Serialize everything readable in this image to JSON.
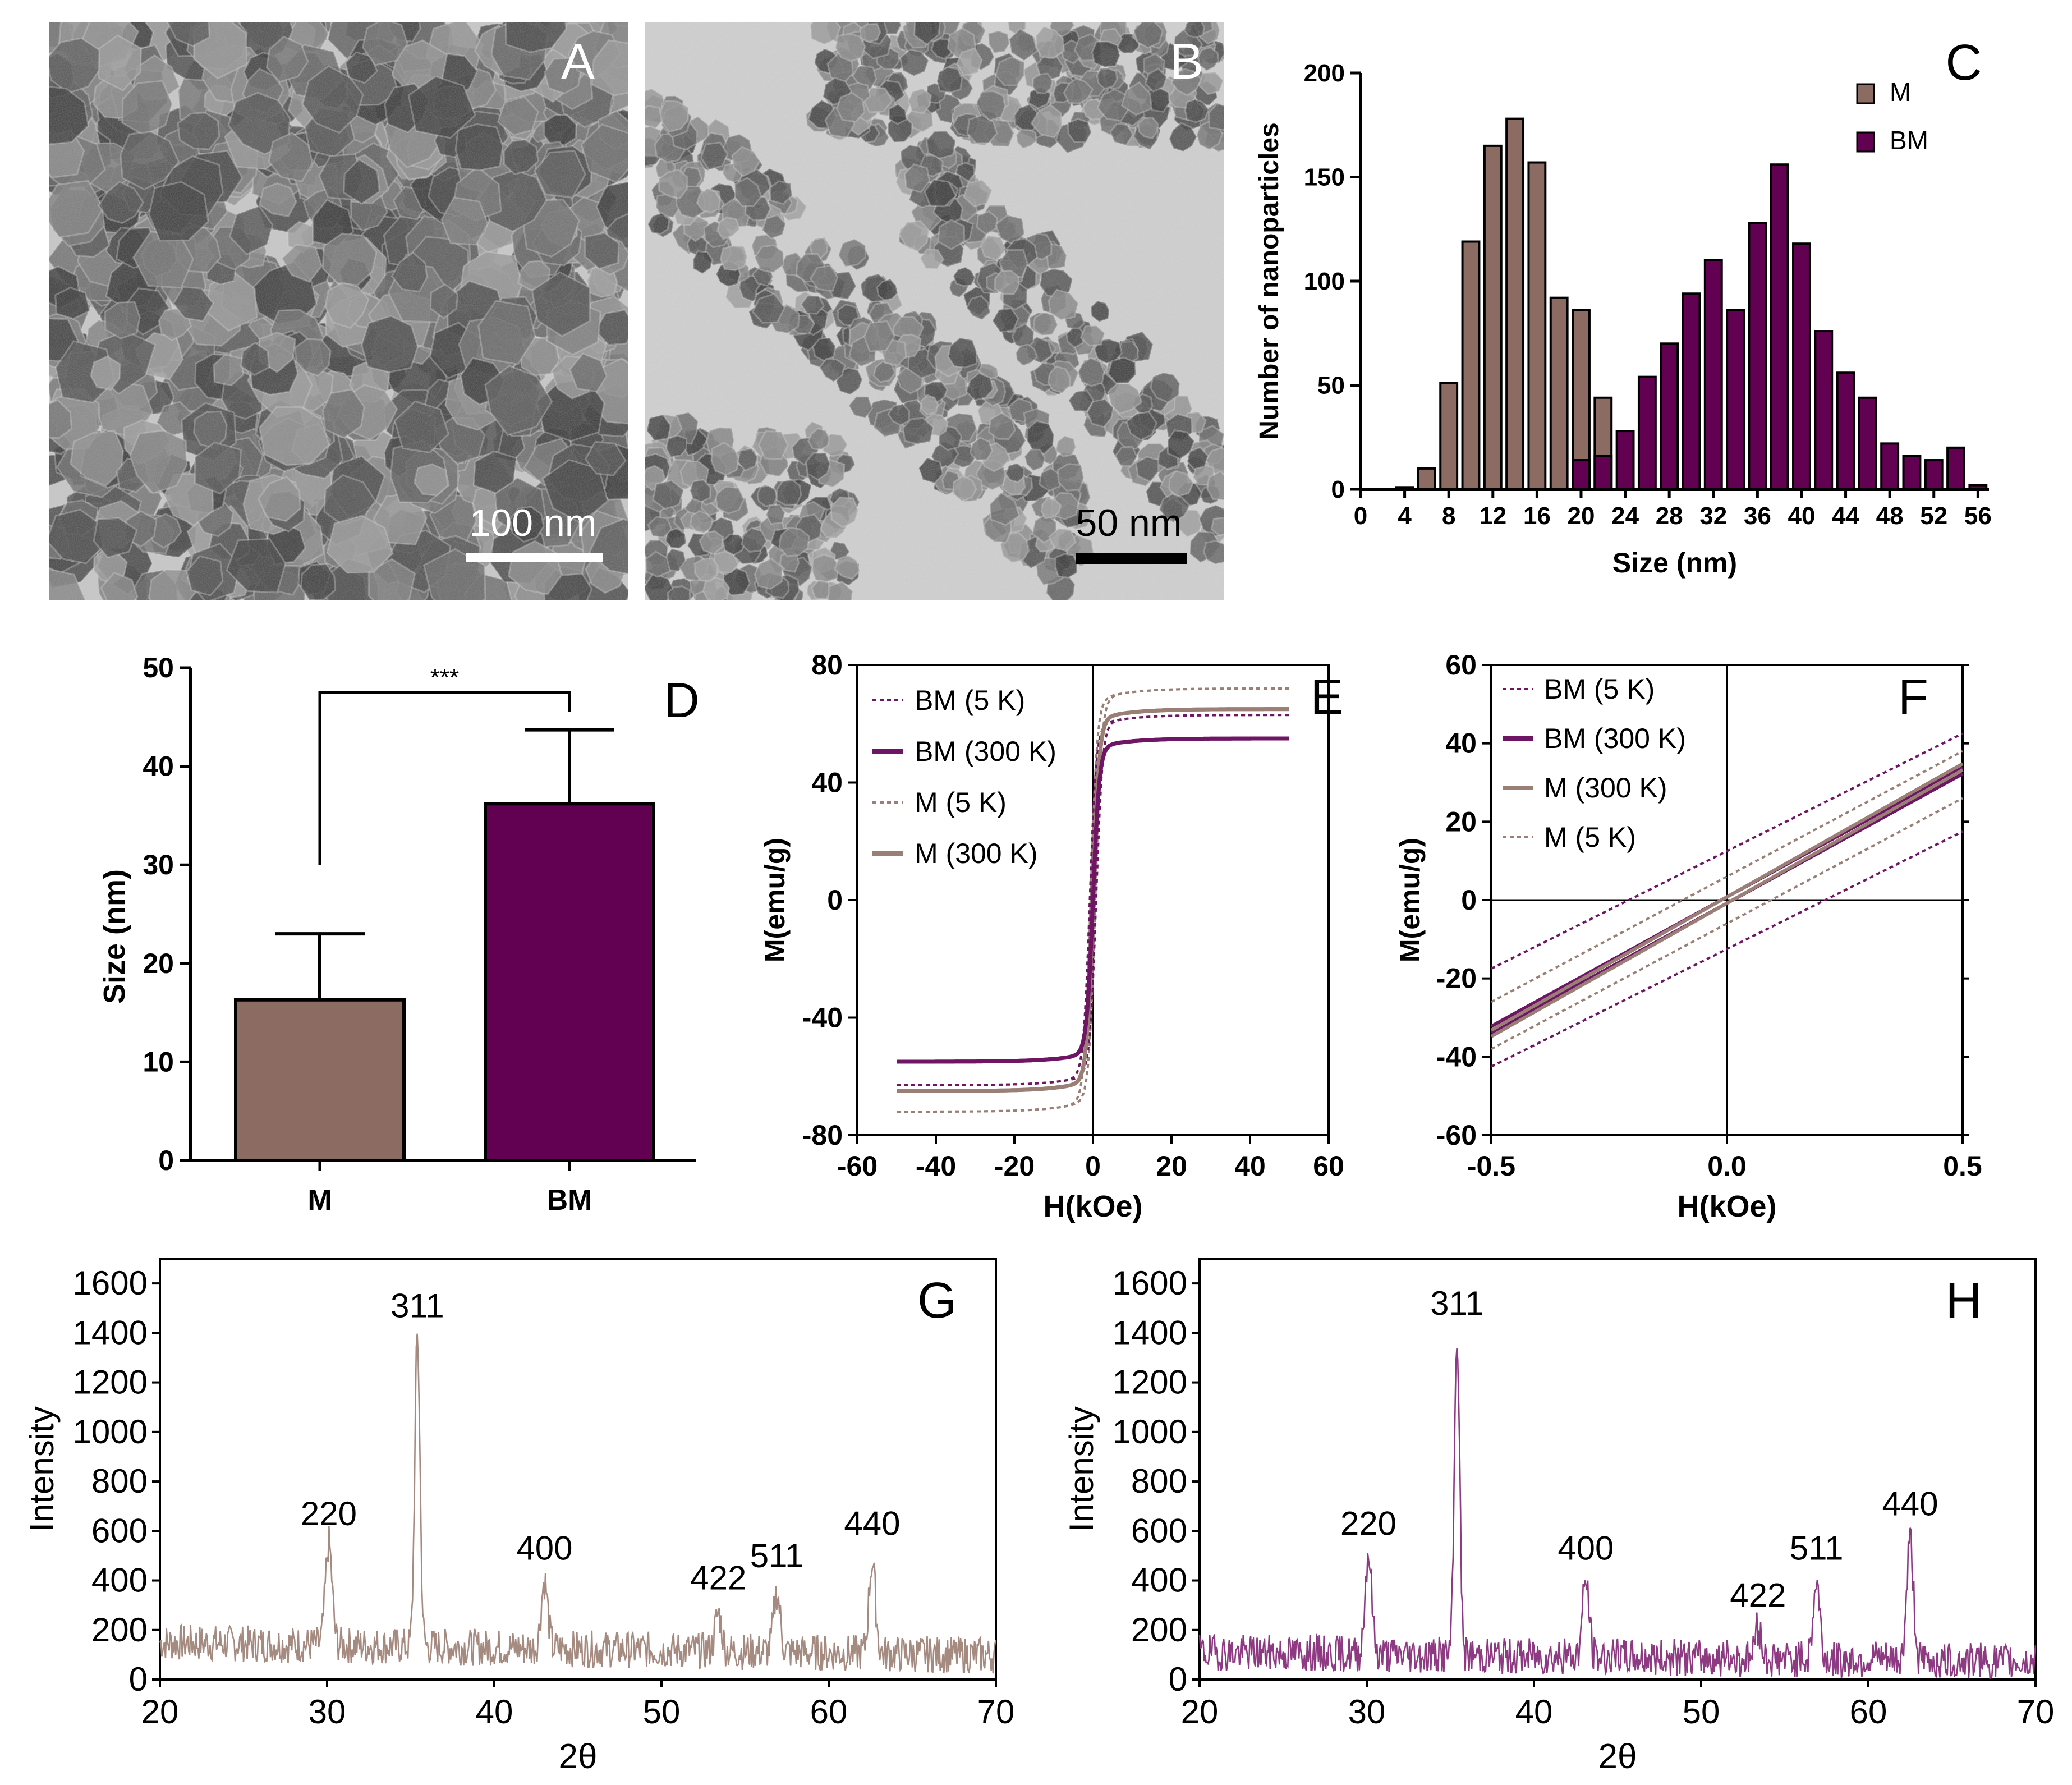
{
  "colors": {
    "M": "#8b6b62",
    "BM": "#620051",
    "M_line": "#9a7f76",
    "BM_line": "#6e1563",
    "bg": "#ffffff"
  },
  "panel_a": {
    "letter": "A",
    "scale_label": "100 nm",
    "image_kind": "tem-micrograph"
  },
  "panel_b": {
    "letter": "B",
    "scale_label": "50 nm",
    "image_kind": "tem-micrograph"
  },
  "chart_data": [
    {
      "panel": "C",
      "type": "bar",
      "ylabel": "Number of nanoparticles",
      "xlabel": "Size (nm)",
      "xlim": [
        0,
        57
      ],
      "ylim": [
        0,
        200
      ],
      "xticks": [
        0,
        4,
        8,
        12,
        16,
        20,
        24,
        28,
        32,
        36,
        40,
        44,
        48,
        52,
        56
      ],
      "yticks": [
        0,
        50,
        100,
        150,
        200
      ],
      "legend": [
        "M",
        "BM"
      ],
      "legend_position": "top-right",
      "series": [
        {
          "name": "M",
          "x": [
            4,
            6,
            8,
            10,
            12,
            14,
            16,
            18,
            20,
            22
          ],
          "values": [
            1,
            10,
            51,
            119,
            165,
            178,
            157,
            92,
            86,
            44
          ]
        },
        {
          "name": "BM",
          "x": [
            20,
            22,
            24,
            26,
            28,
            30,
            32,
            34,
            36,
            38,
            40,
            42,
            44,
            46,
            48,
            50,
            52,
            54,
            56
          ],
          "values": [
            14,
            16,
            28,
            54,
            70,
            94,
            110,
            86,
            128,
            156,
            118,
            76,
            56,
            44,
            22,
            16,
            14,
            20,
            2
          ]
        }
      ]
    },
    {
      "panel": "D",
      "type": "bar",
      "categories": [
        "M",
        "BM"
      ],
      "values": [
        16.3,
        36.2
      ],
      "errors": [
        6.7,
        7.5
      ],
      "significance": "***",
      "xlabel": "",
      "ylabel": "Size (nm)",
      "ylim": [
        0,
        50
      ],
      "yticks": [
        0,
        10,
        20,
        30,
        40,
        50
      ]
    },
    {
      "panel": "E",
      "type": "line",
      "xlabel": "H(kOe)",
      "ylabel": "M(emu/g)",
      "xlim": [
        -60,
        60
      ],
      "ylim": [
        -80,
        80
      ],
      "xticks": [
        -60,
        -40,
        -20,
        0,
        20,
        40,
        60
      ],
      "yticks": [
        -80,
        -40,
        0,
        40,
        80
      ],
      "legend_position": "top-left",
      "series": [
        {
          "name": "BM (5 K)",
          "style": "dotted",
          "Ms": 63,
          "Hc": 0.8,
          "width": 1.6
        },
        {
          "name": "BM (300 K)",
          "style": "solid",
          "Ms": 55,
          "Hc": 0,
          "width": 1.3
        },
        {
          "name": "M (5 K)",
          "style": "dotted",
          "Ms": 72,
          "Hc": 0.6,
          "width": 1.6
        },
        {
          "name": "M (300 K)",
          "style": "solid",
          "Ms": 65,
          "Hc": 0,
          "width": 1.4
        }
      ]
    },
    {
      "panel": "F",
      "type": "line",
      "xlabel": "H(kOe)",
      "ylabel": "M(emu/g)",
      "xlim": [
        -0.5,
        0.5
      ],
      "ylim": [
        -60,
        60
      ],
      "xticks": [
        -0.5,
        0.0,
        0.5
      ],
      "xtick_labels": [
        "-0.5",
        "0.0",
        "0.5"
      ],
      "yticks": [
        -60,
        -40,
        -20,
        0,
        20,
        40,
        60
      ],
      "legend_position": "top-left",
      "series": [
        {
          "name": "BM (5 K)",
          "style": "dotted",
          "slope": 60,
          "offset": 12.5
        },
        {
          "name": "BM (300 K)",
          "style": "solid",
          "slope": 66,
          "offset": 0
        },
        {
          "name": "M (300 K)",
          "style": "solid",
          "slope": 68,
          "offset": 0
        },
        {
          "name": "M (5 K)",
          "style": "dotted",
          "slope": 64,
          "offset": 6
        }
      ]
    },
    {
      "panel": "G",
      "type": "line",
      "xlabel": "2θ",
      "ylabel": "Intensity",
      "xlim": [
        20,
        70
      ],
      "ylim": [
        0,
        1700
      ],
      "xticks": [
        20,
        30,
        40,
        50,
        60,
        70
      ],
      "yticks": [
        0,
        200,
        400,
        600,
        800,
        1000,
        1200,
        1400,
        1600
      ],
      "peaks": [
        {
          "label": "220",
          "x": 30.1,
          "y": 560
        },
        {
          "label": "311",
          "x": 35.4,
          "y": 1400
        },
        {
          "label": "400",
          "x": 43.0,
          "y": 420
        },
        {
          "label": "422",
          "x": 53.4,
          "y": 300
        },
        {
          "label": "511",
          "x": 56.9,
          "y": 390
        },
        {
          "label": "440",
          "x": 62.6,
          "y": 520
        }
      ],
      "baseline": 150
    },
    {
      "panel": "H",
      "type": "line",
      "xlabel": "2θ",
      "ylabel": "Intensity",
      "xlim": [
        20,
        70
      ],
      "ylim": [
        0,
        1700
      ],
      "xticks": [
        20,
        30,
        40,
        50,
        60,
        70
      ],
      "yticks": [
        0,
        200,
        400,
        600,
        800,
        1000,
        1200,
        1400,
        1600
      ],
      "peaks": [
        {
          "label": "220",
          "x": 30.1,
          "y": 520
        },
        {
          "label": "311",
          "x": 35.4,
          "y": 1410
        },
        {
          "label": "400",
          "x": 43.1,
          "y": 420
        },
        {
          "label": "422",
          "x": 53.4,
          "y": 230
        },
        {
          "label": "511",
          "x": 56.9,
          "y": 420
        },
        {
          "label": "440",
          "x": 62.5,
          "y": 600
        }
      ],
      "baseline": 110
    }
  ]
}
